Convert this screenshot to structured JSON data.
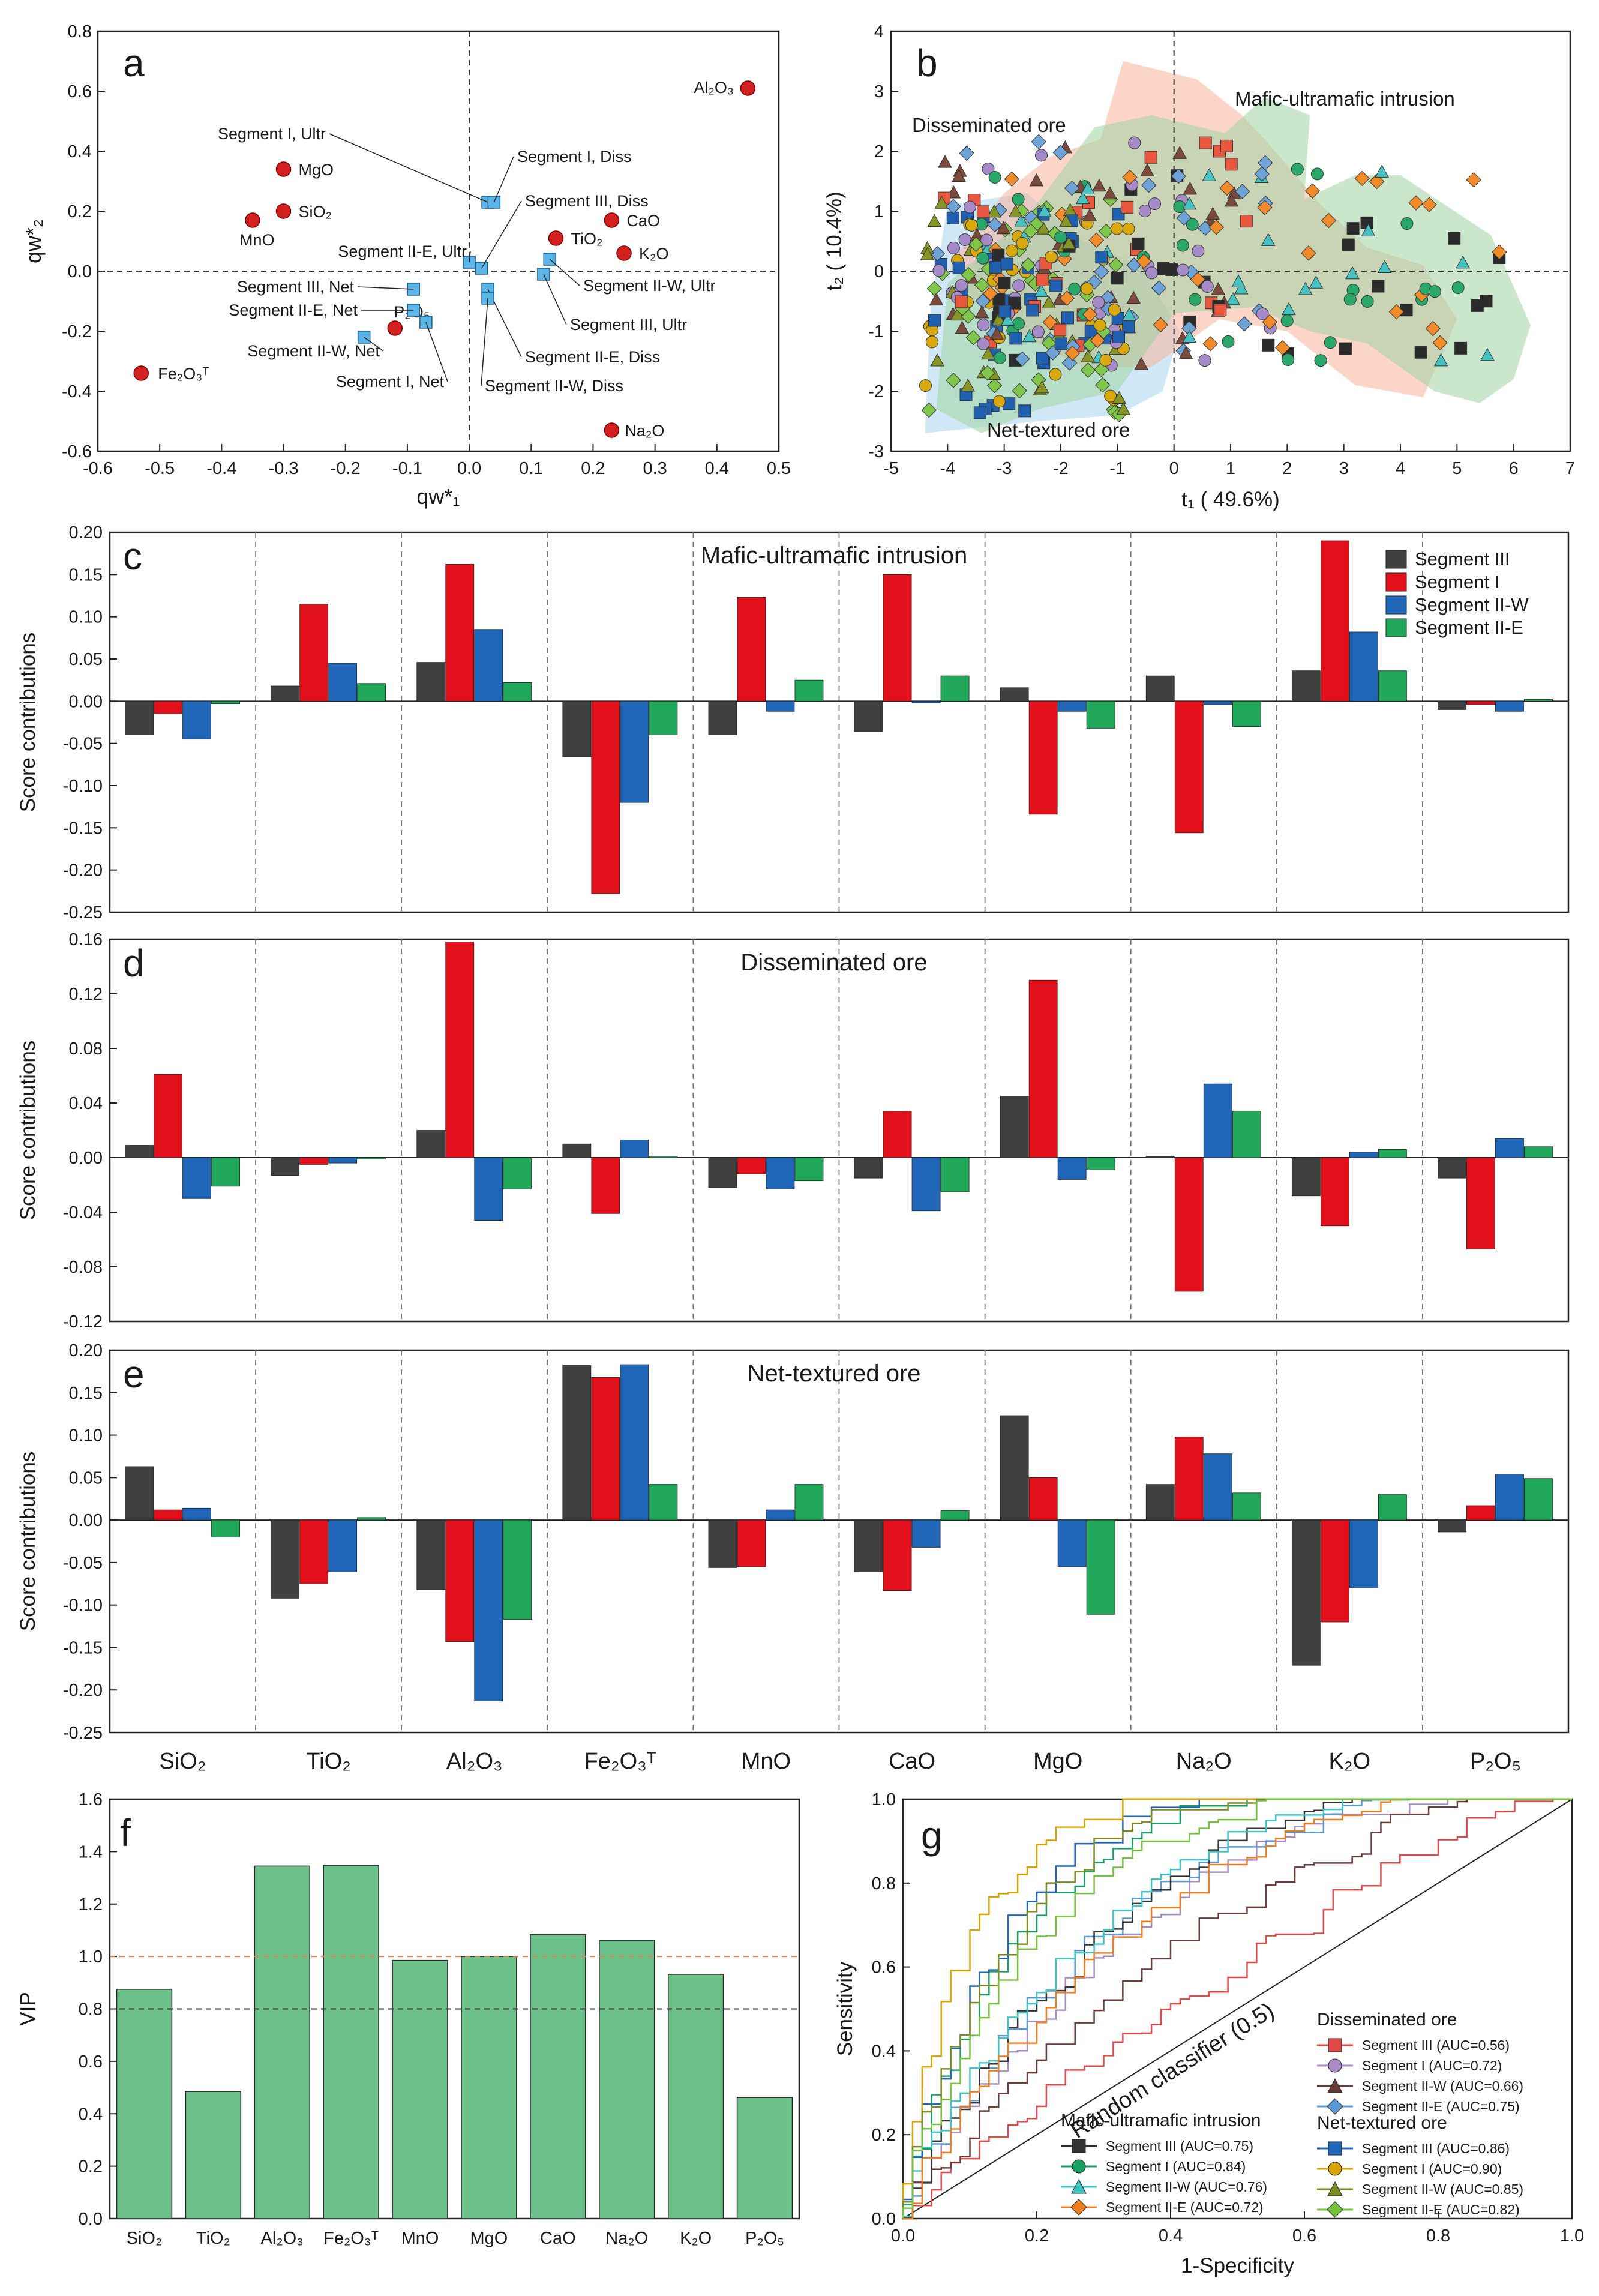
{
  "colors": {
    "seg3": "#404040",
    "seg1": "#e2101a",
    "segW": "#1f66b8",
    "segE": "#22a85a",
    "vip_bar": "#6cc08a",
    "orange_line": "#f07a4a",
    "red_dot": "#d21f1f",
    "blue_sq": "#5ab6e6",
    "diss_fill": "#f6b29a",
    "mafic_fill": "#9ed3a2",
    "net_fill": "#a9d5ef"
  },
  "chart_data": [
    {
      "id": "a",
      "type": "scatter",
      "panel_label": "a",
      "xlabel": "qw*1",
      "ylabel": "qw*2",
      "xlim": [
        -0.6,
        0.5
      ],
      "ylim": [
        -0.6,
        0.8
      ],
      "xticks": [
        "-0.6",
        "-0.5",
        "-0.4",
        "-0.3",
        "-0.2",
        "-0.1",
        "0.0",
        "0.1",
        "0.2",
        "0.3",
        "0.4",
        "0.5"
      ],
      "yticks": [
        "-0.6",
        "-0.4",
        "-0.2",
        "0.0",
        "0.2",
        "0.4",
        "0.6",
        "0.8"
      ],
      "variables": [
        {
          "label": "Al2O3",
          "x": 0.45,
          "y": 0.61
        },
        {
          "label": "MgO",
          "x": -0.3,
          "y": 0.34
        },
        {
          "label": "SiO2",
          "x": -0.3,
          "y": 0.2
        },
        {
          "label": "MnO",
          "x": -0.35,
          "y": 0.17
        },
        {
          "label": "CaO",
          "x": 0.23,
          "y": 0.17
        },
        {
          "label": "TiO2",
          "x": 0.14,
          "y": 0.11
        },
        {
          "label": "K2O",
          "x": 0.25,
          "y": 0.06
        },
        {
          "label": "P2O5",
          "x": -0.12,
          "y": -0.19
        },
        {
          "label": "Fe2O3T",
          "x": -0.53,
          "y": -0.34
        },
        {
          "label": "Na2O",
          "x": 0.23,
          "y": -0.53
        }
      ],
      "segments": [
        {
          "label": "Segment I, Ultr",
          "x": 0.03,
          "y": 0.23
        },
        {
          "label": "Segment I, Diss",
          "x": 0.04,
          "y": 0.23
        },
        {
          "label": "Segment III, Diss",
          "x": 0.02,
          "y": 0.01
        },
        {
          "label": "Segment II-E, Ultr",
          "x": 0.0,
          "y": 0.03
        },
        {
          "label": "Segment III, Net",
          "x": -0.09,
          "y": -0.06
        },
        {
          "label": "Segment II-E, Net",
          "x": -0.09,
          "y": -0.13
        },
        {
          "label": "Segment II-W, Net",
          "x": -0.17,
          "y": -0.22
        },
        {
          "label": "Segment I, Net",
          "x": -0.07,
          "y": -0.17
        },
        {
          "label": "Segment II-W, Ultr",
          "x": 0.13,
          "y": 0.04
        },
        {
          "label": "Segment III, Ultr",
          "x": 0.12,
          "y": -0.01
        },
        {
          "label": "Segment II-E, Diss",
          "x": 0.03,
          "y": -0.06
        },
        {
          "label": "Segment II-W, Diss",
          "x": 0.03,
          "y": -0.09
        }
      ]
    },
    {
      "id": "b",
      "type": "scatter",
      "panel_label": "b",
      "xlabel": "t1 ( 49.6%)",
      "ylabel": "t2 ( 10.4%)",
      "xlim": [
        -5,
        7
      ],
      "ylim": [
        -3,
        4
      ],
      "xticks": [
        "-5",
        "-4",
        "-3",
        "-2",
        "-1",
        "0",
        "1",
        "2",
        "3",
        "4",
        "5",
        "6",
        "7"
      ],
      "yticks": [
        "-3",
        "-2",
        "-1",
        "0",
        "1",
        "2",
        "3",
        "4"
      ],
      "region_labels": {
        "disseminated": "Disseminated ore",
        "mafic": "Mafic-ultramafic intrusion",
        "net": "Net-textured ore"
      }
    },
    {
      "id": "c",
      "type": "bar",
      "panel_label": "c",
      "title": "Mafic-ultramafic intrusion",
      "ylabel": "Score contributions",
      "ylim": [
        -0.25,
        0.2
      ],
      "yticks": [
        "-0.25",
        "-0.20",
        "-0.15",
        "-0.10",
        "-0.05",
        "0.00",
        "0.05",
        "0.10",
        "0.15",
        "0.20"
      ],
      "legend": [
        "Segment III",
        "Segment I",
        "Segment II-W",
        "Segment II-E"
      ],
      "series": [
        {
          "name": "Segment III",
          "values": [
            -0.04,
            0.018,
            0.046,
            -0.066,
            -0.04,
            -0.036,
            0.016,
            0.03,
            0.036,
            -0.01
          ]
        },
        {
          "name": "Segment I",
          "values": [
            -0.015,
            0.115,
            0.162,
            -0.228,
            0.123,
            0.15,
            -0.134,
            -0.156,
            0.19,
            -0.004
          ]
        },
        {
          "name": "Segment II-W",
          "values": [
            -0.045,
            0.045,
            0.085,
            -0.12,
            -0.012,
            -0.002,
            -0.012,
            -0.004,
            0.082,
            -0.012
          ]
        },
        {
          "name": "Segment II-E",
          "values": [
            -0.003,
            0.021,
            0.022,
            -0.04,
            0.025,
            0.03,
            -0.032,
            -0.03,
            0.036,
            0.002
          ]
        }
      ]
    },
    {
      "id": "d",
      "type": "bar",
      "panel_label": "d",
      "title": "Disseminated ore",
      "ylabel": "Score contributions",
      "ylim": [
        -0.12,
        0.16
      ],
      "yticks": [
        "-0.12",
        "-0.08",
        "-0.04",
        "0.00",
        "0.04",
        "0.08",
        "0.12",
        "0.16"
      ],
      "series": [
        {
          "name": "Segment III",
          "values": [
            0.009,
            -0.013,
            0.02,
            0.01,
            -0.022,
            -0.015,
            0.045,
            0.001,
            -0.028,
            -0.015
          ]
        },
        {
          "name": "Segment I",
          "values": [
            0.061,
            -0.005,
            0.158,
            -0.041,
            -0.012,
            0.034,
            0.13,
            -0.098,
            -0.05,
            -0.067
          ]
        },
        {
          "name": "Segment II-W",
          "values": [
            -0.03,
            -0.004,
            -0.046,
            0.013,
            -0.023,
            -0.039,
            -0.016,
            0.054,
            0.004,
            0.014
          ]
        },
        {
          "name": "Segment II-E",
          "values": [
            -0.021,
            -0.001,
            -0.023,
            0.001,
            -0.017,
            -0.025,
            -0.009,
            0.034,
            0.006,
            0.008
          ]
        }
      ]
    },
    {
      "id": "e",
      "type": "bar",
      "panel_label": "e",
      "title": "Net-textured ore",
      "ylabel": "Score contributions",
      "ylim": [
        -0.25,
        0.2
      ],
      "yticks": [
        "-0.25",
        "-0.20",
        "-0.15",
        "-0.10",
        "-0.05",
        "0.00",
        "0.05",
        "0.10",
        "0.15",
        "0.20"
      ],
      "categories": [
        "SiO2",
        "TiO2",
        "Al2O3",
        "Fe2O3T",
        "MnO",
        "CaO",
        "MgO",
        "Na2O",
        "K2O",
        "P2O5"
      ],
      "series": [
        {
          "name": "Segment III",
          "values": [
            0.063,
            -0.092,
            -0.082,
            0.182,
            -0.056,
            -0.061,
            0.123,
            0.042,
            -0.171,
            -0.014
          ]
        },
        {
          "name": "Segment I",
          "values": [
            0.012,
            -0.075,
            -0.143,
            0.168,
            -0.055,
            -0.083,
            0.05,
            0.098,
            -0.12,
            0.017
          ]
        },
        {
          "name": "Segment II-W",
          "values": [
            0.014,
            -0.061,
            -0.213,
            0.183,
            0.012,
            -0.032,
            -0.055,
            0.078,
            -0.08,
            0.054
          ]
        },
        {
          "name": "Segment II-E",
          "values": [
            -0.02,
            0.003,
            -0.117,
            0.042,
            0.042,
            0.011,
            -0.111,
            0.032,
            0.03,
            0.049
          ]
        }
      ]
    },
    {
      "id": "f",
      "type": "bar",
      "panel_label": "f",
      "ylabel": "VIP",
      "ylim": [
        0,
        1.6
      ],
      "yticks": [
        "0.0",
        "0.2",
        "0.4",
        "0.6",
        "0.8",
        "1.0",
        "1.2",
        "1.4",
        "1.6"
      ],
      "categories": [
        "SiO2",
        "TiO2",
        "Al2O3",
        "Fe2O3T",
        "MnO",
        "MgO",
        "CaO",
        "Na2O",
        "K2O",
        "P2O5"
      ],
      "values": [
        0.875,
        0.485,
        1.345,
        1.348,
        0.985,
        1.0,
        1.083,
        1.062,
        0.932,
        0.462
      ],
      "threshold_lines": [
        1.0,
        0.8
      ]
    },
    {
      "id": "g",
      "type": "line",
      "panel_label": "g",
      "xlabel": "1-Specificity",
      "ylabel": "Sensitivity",
      "xlim": [
        0,
        1
      ],
      "ylim": [
        0,
        1
      ],
      "xticks": [
        "0.0",
        "0.2",
        "0.4",
        "0.6",
        "0.8",
        "1.0"
      ],
      "yticks": [
        "0.0",
        "0.2",
        "0.4",
        "0.6",
        "0.8",
        "1.0"
      ],
      "diagonal_label": "Random classifier (0.5)",
      "legend_groups": [
        {
          "title": "Disseminated ore",
          "entries": [
            {
              "label": "Segment III (AUC=0.56)",
              "auc": 0.56,
              "color": "#e24a4a",
              "marker": "square"
            },
            {
              "label": "Segment I (AUC=0.72)",
              "auc": 0.72,
              "color": "#a98bc6",
              "marker": "circle"
            },
            {
              "label": "Segment II-W (AUC=0.66)",
              "auc": 0.66,
              "color": "#6a3c3a",
              "marker": "triangle"
            },
            {
              "label": "Segment II-E (AUC=0.75)",
              "auc": 0.75,
              "color": "#5b9bd5",
              "marker": "diamond"
            }
          ]
        },
        {
          "title": "Mafic-ultramafic intrusion",
          "entries": [
            {
              "label": "Segment III (AUC=0.75)",
              "auc": 0.75,
              "color": "#333333",
              "marker": "square"
            },
            {
              "label": "Segment I (AUC=0.84)",
              "auc": 0.84,
              "color": "#18a060",
              "marker": "circle"
            },
            {
              "label": "Segment II-W (AUC=0.76)",
              "auc": 0.76,
              "color": "#3cc6c6",
              "marker": "triangle"
            },
            {
              "label": "Segment II-E (AUC=0.72)",
              "auc": 0.72,
              "color": "#f07c1c",
              "marker": "diamond"
            }
          ]
        },
        {
          "title": "Net-textured ore",
          "entries": [
            {
              "label": "Segment III (AUC=0.86)",
              "auc": 0.86,
              "color": "#1f66b8",
              "marker": "square"
            },
            {
              "label": "Segment I (AUC=0.90)",
              "auc": 0.9,
              "color": "#d9a400",
              "marker": "circle"
            },
            {
              "label": "Segment II-W (AUC=0.85)",
              "auc": 0.85,
              "color": "#7d8a22",
              "marker": "triangle"
            },
            {
              "label": "Segment II-E (AUC=0.82)",
              "auc": 0.82,
              "color": "#73c23a",
              "marker": "diamond"
            }
          ]
        }
      ]
    }
  ]
}
